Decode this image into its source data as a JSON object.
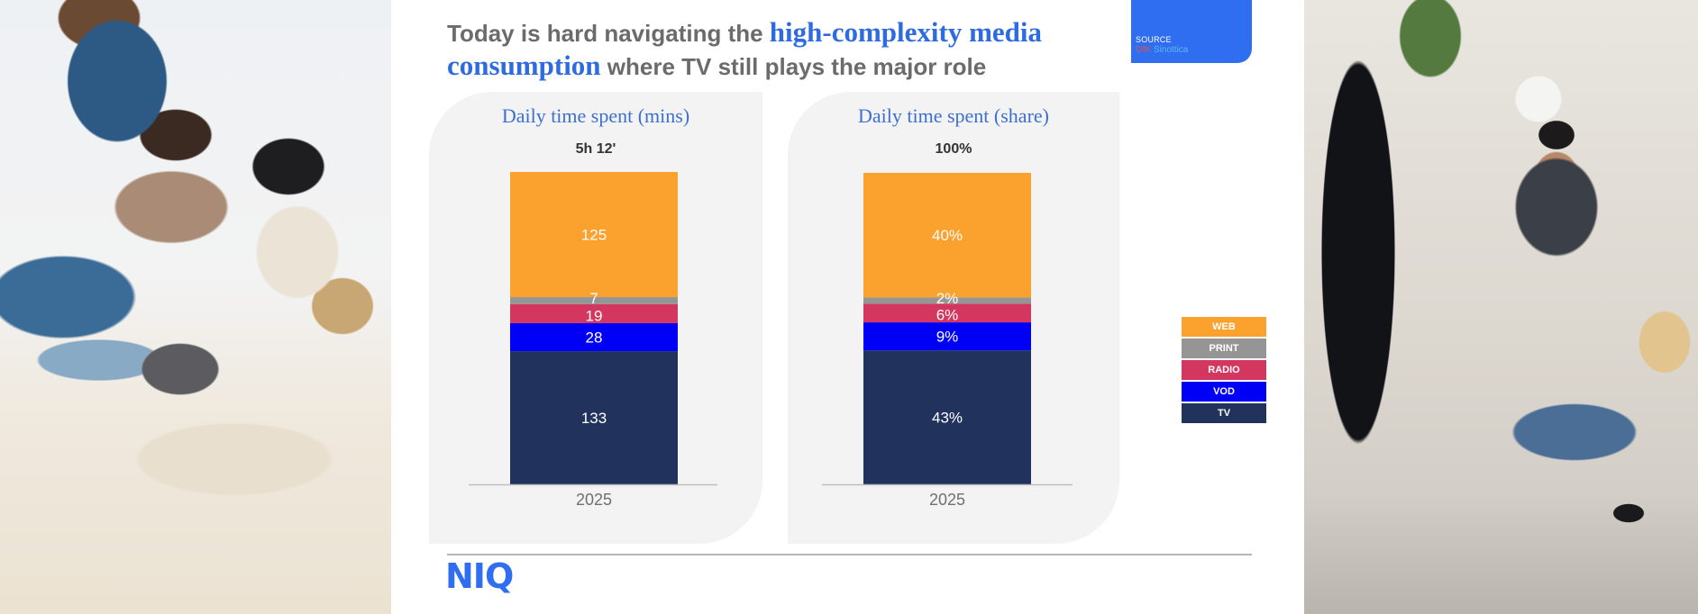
{
  "title": {
    "part1": "Today is hard navigating the ",
    "highlight1": "high-complexity media",
    "highlight2": "consumption",
    "part2": " where TV still plays the major role"
  },
  "source": {
    "label": "SOURCE",
    "brand1": "GfK",
    "brand2": " Sinottica"
  },
  "colors": {
    "WEB": "#fba12e",
    "PRINT": "#959595",
    "RADIO": "#d3375f",
    "VOD": "#0000f7",
    "TV": "#21335c",
    "accent": "#2f6ef0"
  },
  "legend": [
    "WEB",
    "PRINT",
    "RADIO",
    "VOD",
    "TV"
  ],
  "logo": "NIQ",
  "chart_data": [
    {
      "type": "bar",
      "stacked": true,
      "title": "Daily time spent (mins)",
      "total_label": "5h 12'",
      "categories": [
        "2025"
      ],
      "series": [
        {
          "name": "TV",
          "values": [
            133
          ],
          "labels": [
            "133"
          ]
        },
        {
          "name": "VOD",
          "values": [
            28
          ],
          "labels": [
            "28"
          ]
        },
        {
          "name": "RADIO",
          "values": [
            19
          ],
          "labels": [
            "19"
          ]
        },
        {
          "name": "PRINT",
          "values": [
            7
          ],
          "labels": [
            "7"
          ]
        },
        {
          "name": "WEB",
          "values": [
            125
          ],
          "labels": [
            "125"
          ]
        }
      ],
      "xlabel": "",
      "ylabel": "",
      "ylim": [
        0,
        312
      ],
      "grid": false,
      "legend_position": "right"
    },
    {
      "type": "bar",
      "stacked": true,
      "title": "Daily time spent (share)",
      "total_label": "100%",
      "categories": [
        "2025"
      ],
      "series": [
        {
          "name": "TV",
          "values": [
            43
          ],
          "labels": [
            "43%"
          ]
        },
        {
          "name": "VOD",
          "values": [
            9
          ],
          "labels": [
            "9%"
          ]
        },
        {
          "name": "RADIO",
          "values": [
            6
          ],
          "labels": [
            "6%"
          ]
        },
        {
          "name": "PRINT",
          "values": [
            2
          ],
          "labels": [
            "2%"
          ]
        },
        {
          "name": "WEB",
          "values": [
            40
          ],
          "labels": [
            "40%"
          ]
        }
      ],
      "xlabel": "",
      "ylabel": "",
      "ylim": [
        0,
        100
      ],
      "grid": false,
      "legend_position": "right"
    }
  ]
}
